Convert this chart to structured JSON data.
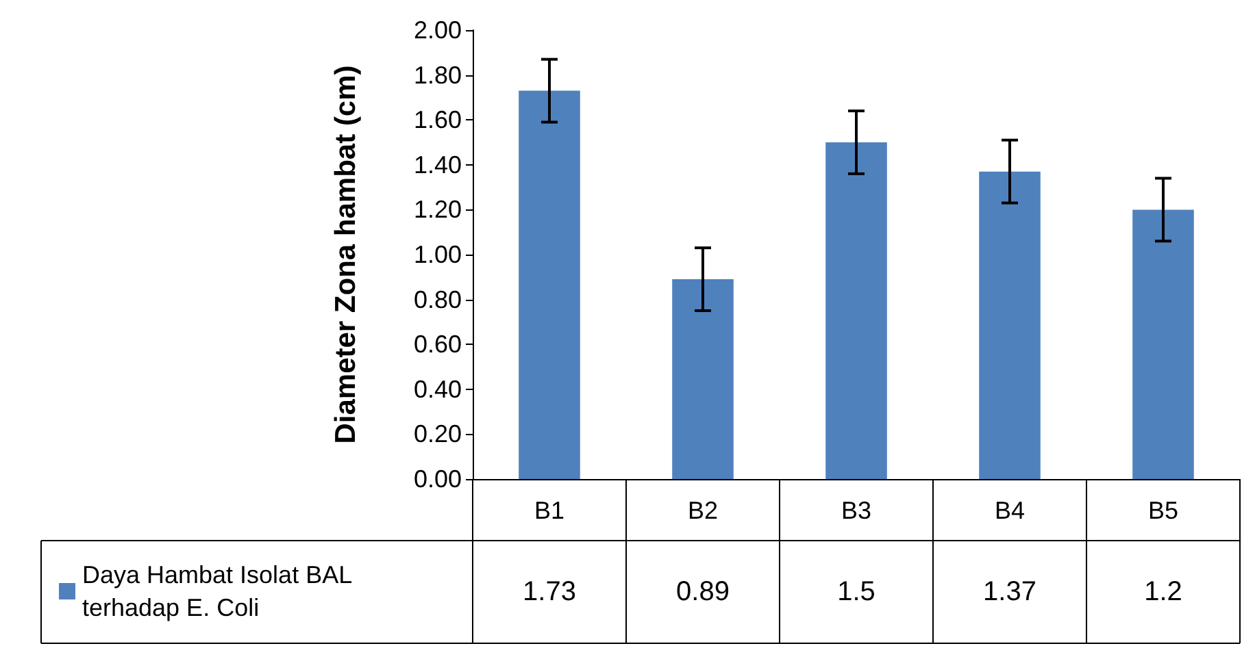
{
  "chart_data": {
    "type": "bar",
    "ylabel": "Diameter Zona hambat (cm)",
    "categories": [
      "B1",
      "B2",
      "B3",
      "B4",
      "B5"
    ],
    "series": [
      {
        "name": "Daya Hambat Isolat BAL terhadap E. Coli",
        "color": "#4f81bd",
        "values": [
          1.73,
          0.89,
          1.5,
          1.37,
          1.2
        ],
        "errors": [
          0.14,
          0.14,
          0.14,
          0.14,
          0.14
        ]
      }
    ],
    "ylim": [
      0,
      2
    ],
    "yticks": [
      {
        "value": 0,
        "label": "0.00"
      },
      {
        "value": 0.2,
        "label": "0.20"
      },
      {
        "value": 0.4,
        "label": "0.40"
      },
      {
        "value": 0.6,
        "label": "0.60"
      },
      {
        "value": 0.8,
        "label": "0.80"
      },
      {
        "value": 1,
        "label": "1.00"
      },
      {
        "value": 1.2,
        "label": "1.20"
      },
      {
        "value": 1.4,
        "label": "1.40"
      },
      {
        "value": 1.6,
        "label": "1.60"
      },
      {
        "value": 1.8,
        "label": "1.80"
      },
      {
        "value": 2,
        "label": "2.00"
      }
    ],
    "data_labels": true,
    "legend": "bottom left"
  }
}
